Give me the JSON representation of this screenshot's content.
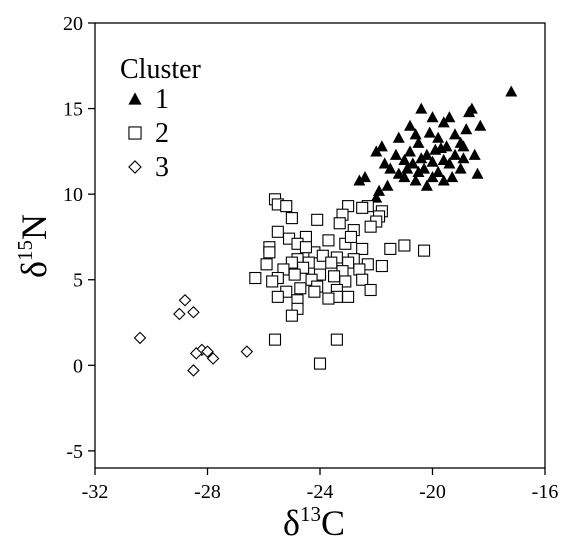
{
  "chart_data": {
    "type": "scatter",
    "xlabel": {
      "prefix": "δ",
      "sup": "13",
      "suffix": "C"
    },
    "ylabel": {
      "prefix": "δ",
      "sup": "15",
      "suffix": "N"
    },
    "xlim": [
      -32,
      -16
    ],
    "ylim": [
      -6,
      20
    ],
    "x_ticks": [
      "-32",
      "-28",
      "-24",
      "-20",
      "-16"
    ],
    "y_ticks": [
      "20",
      "15",
      "10",
      "5",
      "0",
      "-5"
    ],
    "x_tick_values": [
      -32,
      -28,
      -24,
      -20,
      -16
    ],
    "y_tick_values": [
      20,
      15,
      10,
      5,
      0,
      -5
    ],
    "grid": false,
    "legend": {
      "title": "Cluster",
      "position": "top-left"
    },
    "series": [
      {
        "name": "1",
        "marker": "filled-triangle",
        "color": "#000000",
        "points": [
          [
            -17.2,
            16.0
          ],
          [
            -18.6,
            15.0
          ],
          [
            -18.7,
            14.8
          ],
          [
            -20.4,
            15.0
          ],
          [
            -20.0,
            14.5
          ],
          [
            -19.4,
            14.5
          ],
          [
            -19.6,
            14.2
          ],
          [
            -20.8,
            14.0
          ],
          [
            -18.3,
            14.0
          ],
          [
            -18.8,
            13.8
          ],
          [
            -19.2,
            13.5
          ],
          [
            -20.6,
            13.5
          ],
          [
            -21.2,
            13.3
          ],
          [
            -19.8,
            13.3
          ],
          [
            -19.0,
            13.0
          ],
          [
            -20.5,
            13.0
          ],
          [
            -19.5,
            12.8
          ],
          [
            -18.9,
            12.8
          ],
          [
            -21.8,
            12.8
          ],
          [
            -22.0,
            12.5
          ],
          [
            -19.7,
            12.7
          ],
          [
            -20.8,
            12.5
          ],
          [
            -21.3,
            12.3
          ],
          [
            -20.2,
            12.3
          ],
          [
            -19.2,
            12.3
          ],
          [
            -18.5,
            12.3
          ],
          [
            -21.0,
            12.0
          ],
          [
            -19.6,
            12.0
          ],
          [
            -20.7,
            11.8
          ],
          [
            -20.0,
            11.9
          ],
          [
            -21.7,
            11.8
          ],
          [
            -19.4,
            11.8
          ],
          [
            -20.9,
            11.5
          ],
          [
            -20.3,
            11.5
          ],
          [
            -19.0,
            11.5
          ],
          [
            -21.5,
            11.5
          ],
          [
            -20.5,
            11.3
          ],
          [
            -19.8,
            11.3
          ],
          [
            -21.2,
            11.2
          ],
          [
            -18.4,
            11.2
          ],
          [
            -22.4,
            11.0
          ],
          [
            -20.0,
            11.0
          ],
          [
            -19.3,
            11.0
          ],
          [
            -21.0,
            11.0
          ],
          [
            -20.6,
            10.8
          ],
          [
            -22.6,
            10.8
          ],
          [
            -19.6,
            10.8
          ],
          [
            -21.6,
            10.5
          ],
          [
            -20.2,
            10.5
          ],
          [
            -21.9,
            10.2
          ],
          [
            -22.0,
            9.8
          ],
          [
            -20.4,
            12.1
          ],
          [
            -19.9,
            12.6
          ],
          [
            -20.1,
            13.6
          ],
          [
            -18.9,
            12.1
          ]
        ]
      },
      {
        "name": "2",
        "marker": "open-square",
        "color": "#000000",
        "points": [
          [
            -25.6,
            9.7
          ],
          [
            -25.5,
            9.4
          ],
          [
            -25.2,
            9.3
          ],
          [
            -23.0,
            9.3
          ],
          [
            -22.3,
            9.3
          ],
          [
            -22.5,
            9.2
          ],
          [
            -21.8,
            9.0
          ],
          [
            -23.2,
            8.8
          ],
          [
            -21.9,
            8.7
          ],
          [
            -25.0,
            8.6
          ],
          [
            -24.1,
            8.5
          ],
          [
            -23.3,
            8.3
          ],
          [
            -22.0,
            8.4
          ],
          [
            -22.2,
            8.1
          ],
          [
            -22.8,
            7.9
          ],
          [
            -25.5,
            7.8
          ],
          [
            -24.5,
            7.5
          ],
          [
            -25.1,
            7.4
          ],
          [
            -23.7,
            7.3
          ],
          [
            -24.8,
            7.1
          ],
          [
            -23.1,
            7.1
          ],
          [
            -21.5,
            6.8
          ],
          [
            -21.0,
            7.0
          ],
          [
            -20.3,
            6.7
          ],
          [
            -25.8,
            6.9
          ],
          [
            -25.8,
            6.6
          ],
          [
            -24.2,
            6.6
          ],
          [
            -23.9,
            6.4
          ],
          [
            -23.4,
            6.3
          ],
          [
            -22.5,
            6.8
          ],
          [
            -22.8,
            6.2
          ],
          [
            -24.8,
            6.2
          ],
          [
            -25.0,
            6.0
          ],
          [
            -24.4,
            6.0
          ],
          [
            -23.6,
            6.0
          ],
          [
            -23.0,
            6.0
          ],
          [
            -22.3,
            5.9
          ],
          [
            -21.8,
            5.8
          ],
          [
            -25.3,
            5.6
          ],
          [
            -24.6,
            5.7
          ],
          [
            -23.2,
            5.5
          ],
          [
            -22.6,
            5.6
          ],
          [
            -24.9,
            5.3
          ],
          [
            -24.0,
            5.3
          ],
          [
            -23.5,
            5.2
          ],
          [
            -26.3,
            5.1
          ],
          [
            -25.5,
            5.1
          ],
          [
            -24.3,
            5.0
          ],
          [
            -23.1,
            4.9
          ],
          [
            -22.5,
            5.0
          ],
          [
            -25.7,
            4.9
          ],
          [
            -24.1,
            4.6
          ],
          [
            -24.7,
            4.5
          ],
          [
            -23.4,
            4.4
          ],
          [
            -22.2,
            4.4
          ],
          [
            -25.2,
            4.3
          ],
          [
            -25.5,
            4.0
          ],
          [
            -24.8,
            3.8
          ],
          [
            -23.4,
            4.0
          ],
          [
            -23.0,
            4.0
          ],
          [
            -23.7,
            3.9
          ],
          [
            -24.8,
            3.3
          ],
          [
            -25.0,
            2.9
          ],
          [
            -25.6,
            1.5
          ],
          [
            -23.4,
            1.5
          ],
          [
            -24.0,
            0.1
          ],
          [
            -25.9,
            5.9
          ],
          [
            -24.5,
            6.9
          ],
          [
            -22.9,
            7.5
          ],
          [
            -24.2,
            4.3
          ]
        ]
      },
      {
        "name": "3",
        "marker": "open-diamond",
        "color": "#000000",
        "points": [
          [
            -28.8,
            3.8
          ],
          [
            -29.0,
            3.0
          ],
          [
            -28.5,
            3.1
          ],
          [
            -30.4,
            1.6
          ],
          [
            -28.2,
            0.9
          ],
          [
            -28.0,
            0.8
          ],
          [
            -28.4,
            0.7
          ],
          [
            -27.8,
            0.4
          ],
          [
            -26.6,
            0.8
          ],
          [
            -28.5,
            -0.3
          ]
        ]
      }
    ]
  }
}
